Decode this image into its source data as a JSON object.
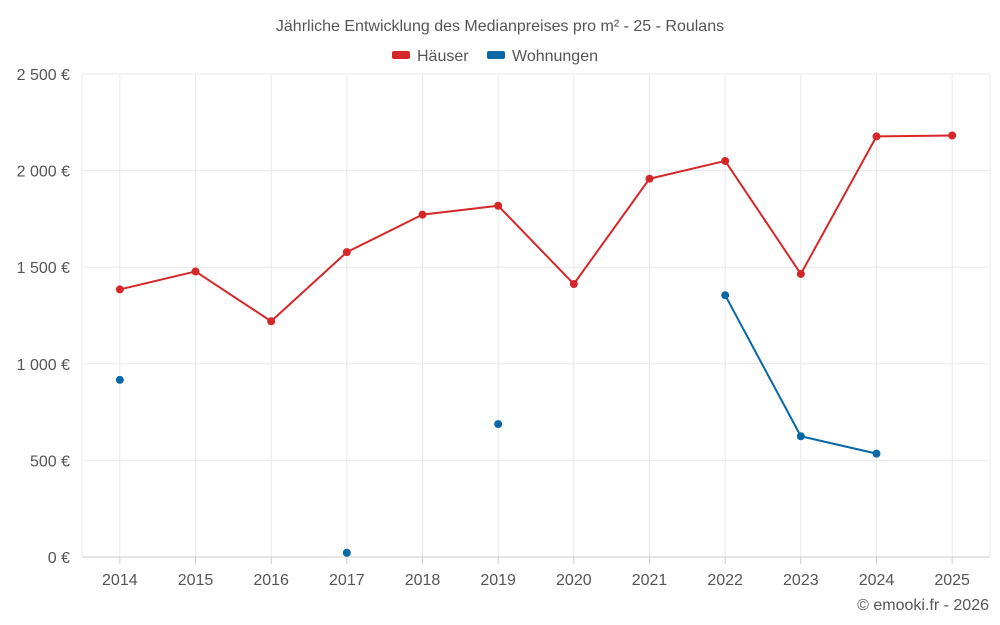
{
  "chart_data": {
    "type": "line",
    "title": "Jährliche Entwicklung des Medianpreises pro m² - 25 - Roulans",
    "categories": [
      "2014",
      "2015",
      "2016",
      "2017",
      "2018",
      "2019",
      "2020",
      "2021",
      "2022",
      "2023",
      "2024",
      "2025"
    ],
    "ylim": [
      0,
      2500
    ],
    "yticks": [
      0,
      500,
      1000,
      1500,
      2000,
      2500
    ],
    "ytick_labels": [
      "0 €",
      "500 €",
      "1 000 €",
      "1 500 €",
      "2 000 €",
      "2 500 €"
    ],
    "grid": true,
    "legend_position": "top-center",
    "series": [
      {
        "name": "Häuser",
        "color": "#d62728",
        "values": [
          1385,
          1478,
          1220,
          1578,
          1772,
          1818,
          1413,
          1958,
          2050,
          1465,
          2177,
          2182
        ]
      },
      {
        "name": "Wohnungen",
        "color": "#0868a6",
        "values": [
          917,
          null,
          null,
          22,
          null,
          688,
          null,
          null,
          1355,
          625,
          535,
          null
        ]
      }
    ]
  },
  "credit": "© emooki.fr - 2026"
}
